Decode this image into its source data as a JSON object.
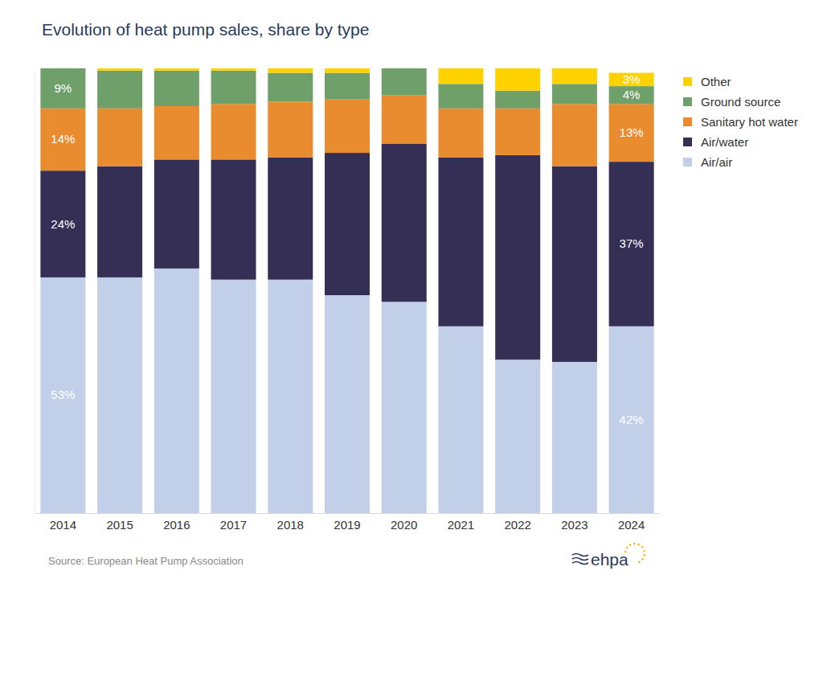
{
  "chart_data": {
    "type": "bar",
    "title": "Evolution of heat pump sales, share by type",
    "source": "Source: European Heat Pump Association",
    "logo": "ehpa",
    "stacked": true,
    "data_labels": true,
    "legend": "right",
    "tick_labels": "x",
    "ylim": [
      0,
      100
    ],
    "categories": [
      "2014",
      "2015",
      "2016",
      "2017",
      "2018",
      "2019",
      "2020",
      "2021",
      "2022",
      "2023",
      "2024"
    ],
    "series": [
      {
        "name": "Air/air",
        "color": "#c1cfe8",
        "values": [
          53,
          53,
          55,
          52.5,
          52.5,
          49,
          47.5,
          42,
          34.5,
          34,
          42
        ],
        "value_labels": [
          "53%",
          null,
          null,
          null,
          null,
          null,
          null,
          null,
          null,
          null,
          "42%"
        ]
      },
      {
        "name": "Air/water",
        "color": "#352f55",
        "values": [
          24,
          25,
          24.5,
          27,
          27.5,
          32,
          35.5,
          38,
          46,
          44,
          37
        ],
        "value_labels": [
          "24%",
          null,
          null,
          null,
          null,
          null,
          null,
          null,
          null,
          null,
          "37%"
        ]
      },
      {
        "name": "Sanitary hot water",
        "color": "#e98b2f",
        "values": [
          14,
          13,
          12,
          12.5,
          12.5,
          12,
          11,
          11,
          10.5,
          14,
          13
        ],
        "value_labels": [
          "14%",
          null,
          null,
          null,
          null,
          null,
          null,
          null,
          null,
          null,
          "13%"
        ]
      },
      {
        "name": "Ground source",
        "color": "#6fa06a",
        "values": [
          9,
          8.5,
          8,
          7.5,
          6.5,
          6,
          6,
          5.5,
          4,
          4.5,
          4
        ],
        "value_labels": [
          "9%",
          null,
          null,
          null,
          null,
          null,
          null,
          null,
          null,
          null,
          "4%"
        ]
      },
      {
        "name": "Other",
        "color": "#ffd200",
        "values": [
          0,
          0.5,
          0.5,
          0.5,
          1,
          1,
          0,
          3.5,
          5,
          3.5,
          3
        ],
        "value_labels": [
          null,
          null,
          null,
          null,
          null,
          null,
          null,
          null,
          null,
          null,
          "3%"
        ]
      }
    ]
  }
}
